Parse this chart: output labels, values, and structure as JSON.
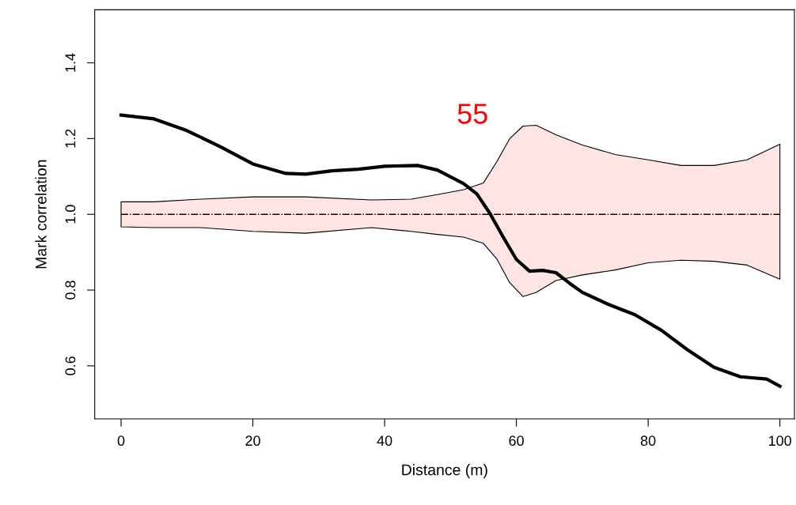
{
  "chart_data": {
    "type": "line",
    "xlabel": "Distance (m)",
    "ylabel": "Mark correlation",
    "xlim": [
      -4,
      102.2
    ],
    "ylim": [
      0.46,
      1.54
    ],
    "xticks": [
      0,
      20,
      40,
      60,
      80,
      100
    ],
    "yticks": [
      {
        "value": 0.6,
        "label": "0.6"
      },
      {
        "value": 0.8,
        "label": "0.8"
      },
      {
        "value": 1.0,
        "label": "1.0"
      },
      {
        "value": 1.2,
        "label": "1.2"
      },
      {
        "value": 1.4,
        "label": "1.4"
      }
    ],
    "grid": false,
    "legend": false,
    "series": [
      {
        "color": "#000000",
        "line_style": "dashdot",
        "x": [
          0,
          5,
          12,
          20,
          28,
          38,
          44,
          48,
          52,
          55,
          57,
          59,
          61,
          63,
          66,
          70,
          75,
          80,
          85,
          90,
          95,
          100
        ],
        "values": [
          1,
          1,
          1,
          1,
          1,
          1,
          1,
          1,
          1,
          1,
          1,
          1,
          1,
          1,
          1,
          1,
          1,
          1,
          1,
          1,
          1,
          1
        ],
        "upper": [
          1.033,
          1.033,
          1.04,
          1.046,
          1.046,
          1.038,
          1.04,
          1.052,
          1.065,
          1.083,
          1.138,
          1.2,
          1.233,
          1.235,
          1.21,
          1.183,
          1.158,
          1.144,
          1.129,
          1.129,
          1.144,
          1.185
        ],
        "lower": [
          0.967,
          0.965,
          0.965,
          0.955,
          0.95,
          0.965,
          0.955,
          0.947,
          0.94,
          0.923,
          0.883,
          0.819,
          0.783,
          0.794,
          0.825,
          0.84,
          0.853,
          0.872,
          0.879,
          0.876,
          0.866,
          0.829
        ]
      },
      {
        "color": "#000000",
        "line_style": "solid",
        "x": [
          0,
          5,
          10,
          15,
          20,
          25,
          28,
          32,
          36,
          40,
          45,
          48,
          52,
          54,
          56,
          58,
          60,
          62,
          64,
          66,
          68,
          70,
          74,
          78,
          82,
          86,
          90,
          94,
          98,
          100
        ],
        "values": [
          1.262,
          1.252,
          1.221,
          1.179,
          1.133,
          1.108,
          1.106,
          1.115,
          1.119,
          1.127,
          1.129,
          1.117,
          1.081,
          1.054,
          1.002,
          0.94,
          0.881,
          0.85,
          0.852,
          0.846,
          0.819,
          0.794,
          0.762,
          0.735,
          0.694,
          0.642,
          0.596,
          0.571,
          0.565,
          0.546
        ]
      }
    ],
    "annotations": [
      "55"
    ]
  }
}
